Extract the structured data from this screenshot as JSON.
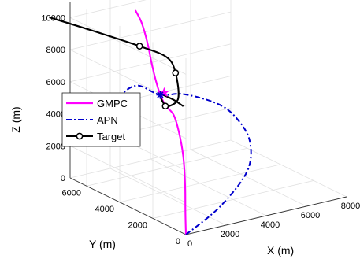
{
  "chart_data": {
    "type": "line3d",
    "xlabel": "X (m)",
    "ylabel": "Y (m)",
    "zlabel": "Z (m)",
    "xlim": [
      0,
      8000
    ],
    "ylim": [
      0,
      7000
    ],
    "zlim": [
      0,
      11000
    ],
    "xticks": [
      0,
      2000,
      4000,
      6000,
      8000
    ],
    "yticks": [
      0,
      2000,
      4000,
      6000
    ],
    "zticks": [
      0,
      2000,
      4000,
      6000,
      8000,
      10000
    ],
    "grid": true,
    "legend_location": "left",
    "series": [
      {
        "name": "GMPC",
        "color": "#ff00ff",
        "line_style": "solid",
        "points": [
          [
            0,
            0,
            0
          ],
          [
            300,
            400,
            1200
          ],
          [
            700,
            900,
            2500
          ],
          [
            1100,
            1500,
            3800
          ],
          [
            1300,
            2000,
            5000
          ],
          [
            1200,
            2200,
            6000
          ],
          [
            900,
            2300,
            6600
          ],
          [
            700,
            2400,
            7300
          ],
          [
            800,
            2800,
            8000
          ],
          [
            1000,
            3300,
            8800
          ],
          [
            1300,
            3900,
            9600
          ],
          [
            1500,
            4500,
            10500
          ],
          [
            1600,
            5000,
            11000
          ]
        ]
      },
      {
        "name": "APN",
        "color": "#0000cc",
        "line_style": "dash-dot",
        "points": [
          [
            0,
            0,
            0
          ],
          [
            2200,
            600,
            800
          ],
          [
            4200,
            1400,
            2000
          ],
          [
            5000,
            2200,
            3200
          ],
          [
            4800,
            2700,
            4400
          ],
          [
            4000,
            2900,
            5500
          ],
          [
            2200,
            2800,
            6700
          ],
          [
            700,
            2400,
            7300
          ],
          [
            -900,
            1900,
            8600
          ],
          [
            -2100,
            1500,
            8300
          ],
          [
            -2400,
            1300,
            6800
          ]
        ]
      },
      {
        "name": "Target",
        "color": "#000000",
        "line_style": "solid",
        "marker": "o",
        "points": [
          [
            200,
            8500,
            9200
          ],
          [
            1500,
            7500,
            8500
          ],
          [
            2800,
            6200,
            7800
          ],
          [
            3500,
            5400,
            7300
          ],
          [
            3600,
            5000,
            6500
          ],
          [
            2500,
            3500,
            6000
          ],
          [
            1600,
            3000,
            6000
          ],
          [
            1200,
            2700,
            6300
          ],
          [
            700,
            2400,
            7300
          ],
          [
            1800,
            3000,
            6400
          ],
          [
            3000,
            3800,
            5200
          ]
        ],
        "marker_indices": [
          2,
          4,
          7
        ]
      }
    ],
    "intercept_point": [
      700,
      2400,
      7300
    ]
  }
}
